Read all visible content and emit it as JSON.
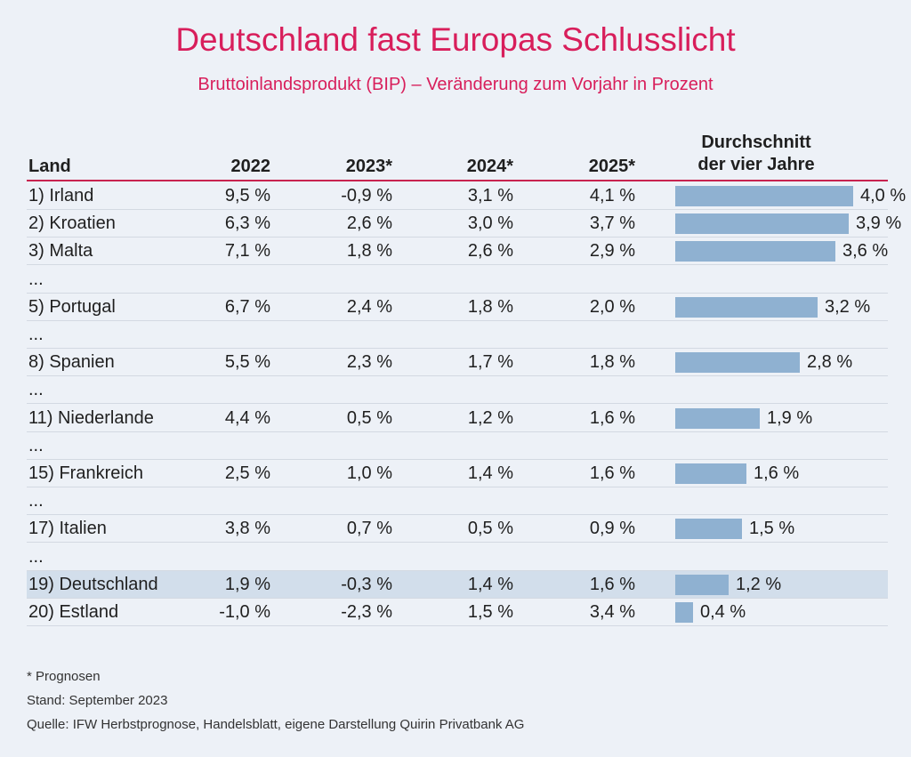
{
  "title": "Deutschland fast Europas Schlusslicht",
  "subtitle": "Bruttoinlandsprodukt (BIP) – Veränderung zum Vorjahr in Prozent",
  "columns": {
    "land": "Land",
    "y2022": "2022",
    "y2023": "2023*",
    "y2024": "2024*",
    "y2025": "2025*",
    "avg_line1": "Durchschnitt",
    "avg_line2": "der vier Jahre"
  },
  "chart_data": {
    "type": "table",
    "title": "Deutschland fast Europas Schlusslicht",
    "subtitle": "Bruttoinlandsprodukt (BIP) – Veränderung zum Vorjahr in Prozent",
    "columns": [
      "Land",
      "2022",
      "2023*",
      "2024*",
      "2025*",
      "Durchschnitt der vier Jahre"
    ],
    "bar_max": 4.0,
    "rows": [
      {
        "land": "1) Irland",
        "v2022": "9,5 %",
        "v2023": "-0,9 %",
        "v2024": "3,1 %",
        "v2025": "4,1 %",
        "avg": 4.0,
        "avg_label": "4,0 %"
      },
      {
        "land": "2) Kroatien",
        "v2022": "6,3 %",
        "v2023": "2,6 %",
        "v2024": "3,0 %",
        "v2025": "3,7 %",
        "avg": 3.9,
        "avg_label": "3,9 %"
      },
      {
        "land": "3) Malta",
        "v2022": "7,1 %",
        "v2023": "1,8 %",
        "v2024": "2,6 %",
        "v2025": "2,9 %",
        "avg": 3.6,
        "avg_label": "3,6 %"
      },
      {
        "ellipsis": "..."
      },
      {
        "land": "5) Portugal",
        "v2022": "6,7 %",
        "v2023": "2,4 %",
        "v2024": "1,8 %",
        "v2025": "2,0 %",
        "avg": 3.2,
        "avg_label": "3,2 %"
      },
      {
        "ellipsis": "..."
      },
      {
        "land": "8) Spanien",
        "v2022": "5,5 %",
        "v2023": "2,3 %",
        "v2024": "1,7 %",
        "v2025": "1,8 %",
        "avg": 2.8,
        "avg_label": "2,8 %"
      },
      {
        "ellipsis": "..."
      },
      {
        "land": "11) Niederlande",
        "v2022": "4,4 %",
        "v2023": "0,5 %",
        "v2024": "1,2 %",
        "v2025": "1,6 %",
        "avg": 1.9,
        "avg_label": "1,9 %"
      },
      {
        "ellipsis": "..."
      },
      {
        "land": "15) Frankreich",
        "v2022": "2,5 %",
        "v2023": "1,0 %",
        "v2024": "1,4 %",
        "v2025": "1,6 %",
        "avg": 1.6,
        "avg_label": "1,6 %"
      },
      {
        "ellipsis": "..."
      },
      {
        "land": "17) Italien",
        "v2022": "3,8 %",
        "v2023": "0,7 %",
        "v2024": "0,5 %",
        "v2025": "0,9 %",
        "avg": 1.5,
        "avg_label": "1,5 %"
      },
      {
        "ellipsis": "..."
      },
      {
        "land": "19) Deutschland",
        "v2022": "1,9 %",
        "v2023": "-0,3 %",
        "v2024": "1,4 %",
        "v2025": "1,6 %",
        "avg": 1.2,
        "avg_label": "1,2 %",
        "highlight": true
      },
      {
        "land": "20) Estland",
        "v2022": "-1,0 %",
        "v2023": "-2,3 %",
        "v2024": "1,5 %",
        "v2025": "3,4 %",
        "avg": 0.4,
        "avg_label": "0,4 %"
      }
    ]
  },
  "colors": {
    "title": "#d81e5b",
    "bar": "#8fb1d1",
    "highlight_row": "#d2deeb",
    "header_line": "#c8234f"
  },
  "footer": {
    "note": "* Prognosen",
    "stand": "Stand: September 2023",
    "source": "Quelle: IFW Herbstprognose, Handelsblatt, eigene Darstellung Quirin Privatbank AG"
  }
}
